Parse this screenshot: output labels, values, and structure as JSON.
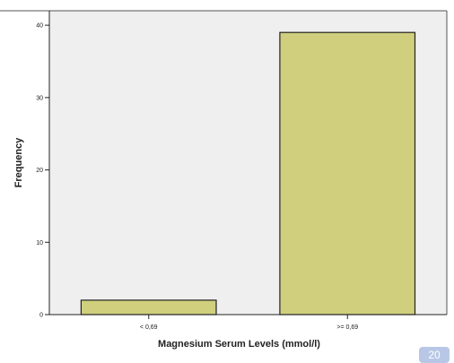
{
  "chart_data": {
    "type": "bar",
    "categories": [
      "< 0,69",
      ">= 0,69"
    ],
    "values": [
      2,
      39
    ],
    "xlabel": "Magnesium Serum Levels (mmol/l)",
    "ylabel": "Frequency",
    "ylim": [
      0,
      42
    ],
    "yticks": [
      0,
      10,
      20,
      30,
      40
    ],
    "yticks_labels": [
      "0",
      "10",
      "20",
      "30",
      "40"
    ],
    "grid": false,
    "bar_color": "#cfcf7e",
    "bar_edge_color": "#222222",
    "plot_background": "#efefef"
  },
  "page_number": "20"
}
